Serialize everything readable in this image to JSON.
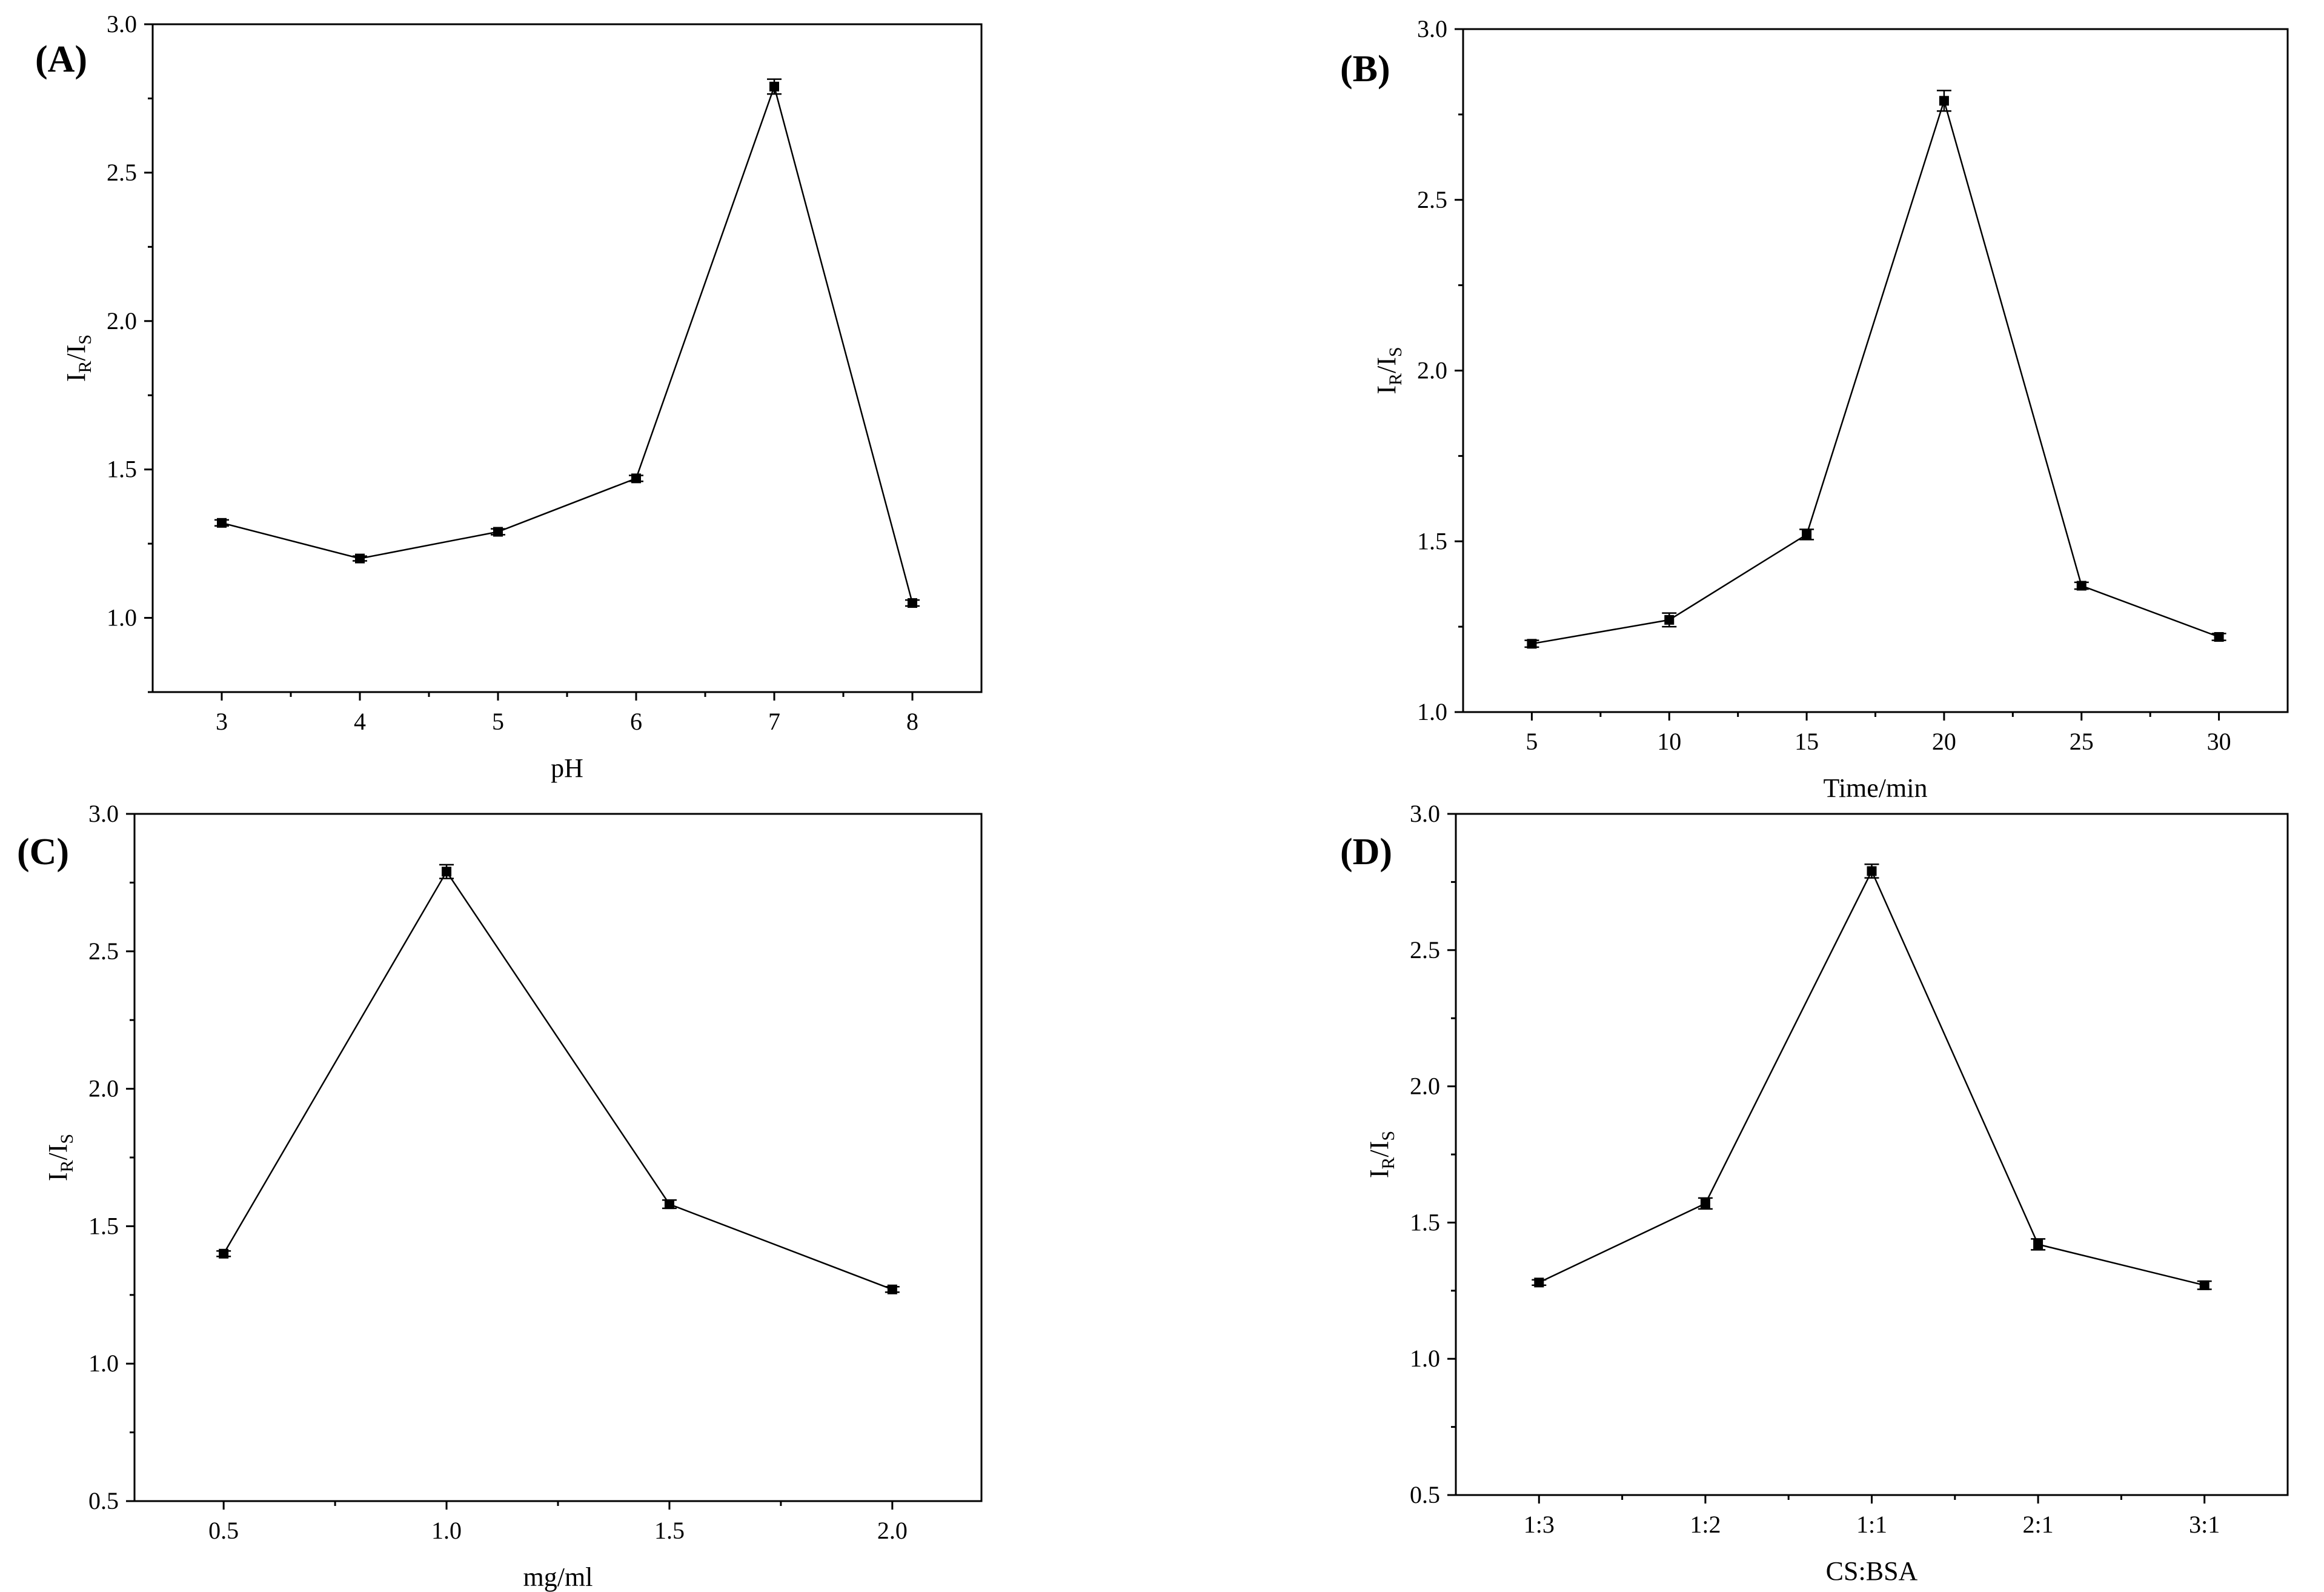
{
  "chart_data": [
    {
      "panel": "(A)",
      "type": "line",
      "xlabel": "pH",
      "ylabel": {
        "main1": "I",
        "sub1": "R",
        "main2": "/I",
        "sub2": "S"
      },
      "x": [
        3,
        4,
        5,
        6,
        7,
        8
      ],
      "y": [
        1.32,
        1.2,
        1.29,
        1.47,
        2.79,
        1.05
      ],
      "err": [
        0.01,
        0.008,
        0.01,
        0.01,
        0.025,
        0.01
      ],
      "xlim": [
        2.5,
        8.5
      ],
      "ylim": [
        0.75,
        3.0
      ],
      "x_ticks": [
        3,
        4,
        5,
        6,
        7,
        8
      ],
      "x_tick_labels": [
        "3",
        "4",
        "5",
        "6",
        "7",
        "8"
      ],
      "y_ticks": [
        1.0,
        1.5,
        2.0,
        2.5,
        3.0
      ],
      "y_tick_labels": [
        "1.0",
        "1.5",
        "2.0",
        "2.5",
        "3.0"
      ],
      "marker": "square",
      "color": "#000000"
    },
    {
      "panel": "(B)",
      "type": "line",
      "xlabel": "Time/min",
      "ylabel": {
        "main1": "I",
        "sub1": "R",
        "main2": "/I",
        "sub2": "S"
      },
      "x": [
        5,
        10,
        15,
        20,
        25,
        30
      ],
      "y": [
        1.2,
        1.27,
        1.52,
        2.79,
        1.37,
        1.22
      ],
      "err": [
        0.01,
        0.02,
        0.015,
        0.03,
        0.01,
        0.01
      ],
      "xlim": [
        2.5,
        32.5
      ],
      "ylim": [
        1.0,
        3.0
      ],
      "x_ticks": [
        5,
        10,
        15,
        20,
        25,
        30
      ],
      "x_tick_labels": [
        "5",
        "10",
        "15",
        "20",
        "25",
        "30"
      ],
      "y_ticks": [
        1.0,
        1.5,
        2.0,
        2.5,
        3.0
      ],
      "y_tick_labels": [
        "1.0",
        "1.5",
        "2.0",
        "2.5",
        "3.0"
      ],
      "marker": "square",
      "color": "#000000"
    },
    {
      "panel": "(C)",
      "type": "line",
      "xlabel": "mg/ml",
      "ylabel": {
        "main1": "I",
        "sub1": "R",
        "main2": "/I",
        "sub2": "S"
      },
      "x": [
        0.5,
        1.0,
        1.5,
        2.0
      ],
      "y": [
        1.4,
        2.79,
        1.58,
        1.27
      ],
      "err": [
        0.01,
        0.025,
        0.015,
        0.01
      ],
      "xlim": [
        0.3,
        2.2
      ],
      "ylim": [
        0.5,
        3.0
      ],
      "x_ticks": [
        0.5,
        1.0,
        1.5,
        2.0
      ],
      "x_tick_labels": [
        "0.5",
        "1.0",
        "1.5",
        "2.0"
      ],
      "y_ticks": [
        0.5,
        1.0,
        1.5,
        2.0,
        2.5,
        3.0
      ],
      "y_tick_labels": [
        "0.5",
        "1.0",
        "1.5",
        "2.0",
        "2.5",
        "3.0"
      ],
      "marker": "square",
      "color": "#000000"
    },
    {
      "panel": "(D)",
      "type": "line",
      "xlabel": "CS:BSA",
      "ylabel": {
        "main1": "I",
        "sub1": "R",
        "main2": "/I",
        "sub2": "S"
      },
      "categories": [
        "1:3",
        "1:2",
        "1:1",
        "2:1",
        "3:1"
      ],
      "x": [
        1,
        2,
        3,
        4,
        5
      ],
      "y": [
        1.28,
        1.57,
        2.79,
        1.42,
        1.27
      ],
      "err": [
        0.01,
        0.02,
        0.025,
        0.02,
        0.015
      ],
      "xlim": [
        0.5,
        5.5
      ],
      "ylim": [
        0.5,
        3.0
      ],
      "x_ticks": [
        1,
        2,
        3,
        4,
        5
      ],
      "x_tick_labels": [
        "1:3",
        "1:2",
        "1:1",
        "2:1",
        "3:1"
      ],
      "y_ticks": [
        0.5,
        1.0,
        1.5,
        2.0,
        2.5,
        3.0
      ],
      "y_tick_labels": [
        "0.5",
        "1.0",
        "1.5",
        "2.0",
        "2.5",
        "3.0"
      ],
      "marker": "square",
      "color": "#000000"
    }
  ]
}
